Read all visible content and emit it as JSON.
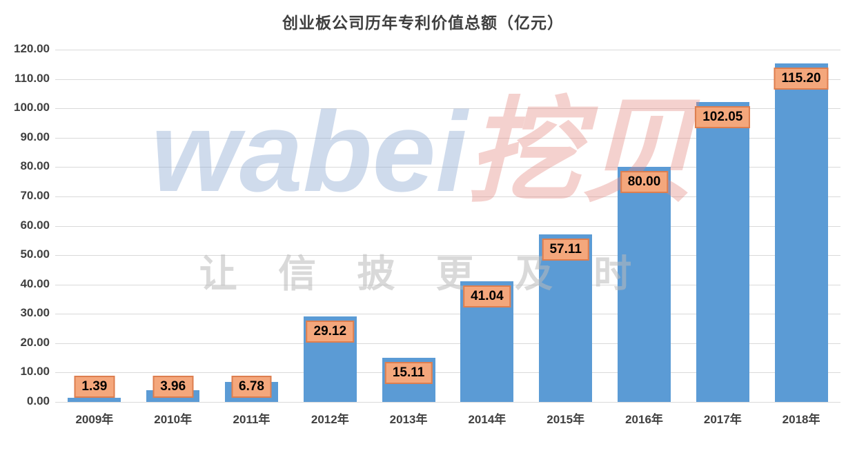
{
  "title": "创业板公司历年专利价值总额（亿元）",
  "watermark": {
    "latin": "wabei",
    "cjk": "挖贝",
    "slogan": "让 信 披 更 及 时"
  },
  "chart_data": {
    "type": "bar",
    "title": "创业板公司历年专利价值总额（亿元）",
    "xlabel": "",
    "ylabel": "",
    "categories": [
      "2009年",
      "2010年",
      "2011年",
      "2012年",
      "2013年",
      "2014年",
      "2015年",
      "2016年",
      "2017年",
      "2018年"
    ],
    "values": [
      1.39,
      3.96,
      6.78,
      29.12,
      15.11,
      41.04,
      57.11,
      80.0,
      102.05,
      115.2
    ],
    "value_labels": [
      "1.39",
      "3.96",
      "6.78",
      "29.12",
      "15.11",
      "41.04",
      "57.11",
      "80.00",
      "102.05",
      "115.20"
    ],
    "ylim": [
      0,
      120
    ],
    "ytick_step": 10,
    "ytick_labels": [
      "0.00",
      "10.00",
      "20.00",
      "30.00",
      "40.00",
      "50.00",
      "60.00",
      "70.00",
      "80.00",
      "90.00",
      "100.00",
      "110.00",
      "120.00"
    ],
    "grid": true,
    "legend": "none",
    "bar_color": "#5B9BD5",
    "label_fill": "#F4A77C",
    "label_border": "#DD7E4F",
    "grid_color": "#D9D9D9",
    "axis_text_color": "#404040"
  }
}
